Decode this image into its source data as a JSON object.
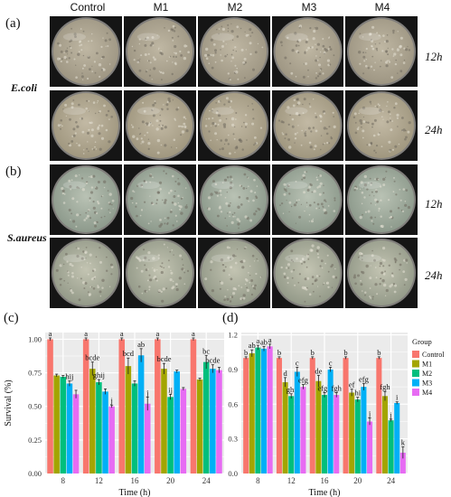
{
  "header": {
    "columns": [
      "Control",
      "M1",
      "M2",
      "M3",
      "M4"
    ]
  },
  "photos": {
    "panel_a": {
      "label": "(a)",
      "organism": "E.coli",
      "rows": [
        "12h",
        "24h"
      ]
    },
    "panel_b": {
      "label": "(b)",
      "organism": "S.aureus",
      "rows": [
        "12h",
        "24h"
      ]
    }
  },
  "chart_data": [
    {
      "type": "bar",
      "panel_label": "(c)",
      "xlabel": "Time (h)",
      "ylabel": "Survival (%)",
      "categories": [
        "8",
        "12",
        "16",
        "20",
        "24"
      ],
      "yticks": [
        "0.00",
        "0.25",
        "0.50",
        "0.75",
        "1.00"
      ],
      "ylim": [
        0,
        1.05
      ],
      "grid": true,
      "series": [
        {
          "name": "Control",
          "values": [
            1.0,
            1.0,
            1.0,
            1.0,
            1.0
          ],
          "errors": [
            0.01,
            0.01,
            0.01,
            0.01,
            0.01
          ],
          "letters": [
            "a",
            "a",
            "a",
            "a",
            "a"
          ]
        },
        {
          "name": "M1",
          "values": [
            0.73,
            0.78,
            0.8,
            0.78,
            0.7
          ],
          "errors": [
            0.01,
            0.05,
            0.06,
            0.04,
            0.01
          ],
          "letters": [
            "",
            "bcde",
            "bcd",
            "bcde",
            ""
          ]
        },
        {
          "name": "M2",
          "values": [
            0.72,
            0.68,
            0.67,
            0.57,
            0.83
          ],
          "errors": [
            0.01,
            0.02,
            0.02,
            0.02,
            0.05
          ],
          "letters": [
            "",
            "ghij",
            "",
            "ij",
            "bc"
          ]
        },
        {
          "name": "M3",
          "values": [
            0.67,
            0.61,
            0.88,
            0.76,
            0.78
          ],
          "errors": [
            0.02,
            0.02,
            0.05,
            0.01,
            0.03
          ],
          "letters": [
            "hij",
            "",
            "ab",
            "",
            "bcde"
          ]
        },
        {
          "name": "M4",
          "values": [
            0.59,
            0.5,
            0.52,
            0.63,
            0.77
          ],
          "errors": [
            0.03,
            0.01,
            0.05,
            0.01,
            0.02
          ],
          "letters": [
            "",
            "j",
            "j",
            "",
            ""
          ]
        }
      ]
    },
    {
      "type": "bar",
      "panel_label": "(d)",
      "xlabel": "Time (h)",
      "ylabel": "",
      "categories": [
        "8",
        "12",
        "16",
        "20",
        "24"
      ],
      "yticks": [
        "0.0",
        "0.3",
        "0.6",
        "0.9",
        "1.2"
      ],
      "ylim": [
        0,
        1.22
      ],
      "grid": true,
      "legend_title": "Group",
      "legend_position": "right",
      "series": [
        {
          "name": "Control",
          "values": [
            1.0,
            1.0,
            1.0,
            1.0,
            1.0
          ],
          "errors": [
            0.01,
            0.01,
            0.01,
            0.01,
            0.01
          ],
          "letters": [
            "b",
            "b",
            "b",
            "b",
            "b"
          ]
        },
        {
          "name": "M1",
          "values": [
            1.04,
            0.79,
            0.8,
            0.7,
            0.67
          ],
          "errors": [
            0.03,
            0.04,
            0.05,
            0.03,
            0.04
          ],
          "letters": [
            "ab",
            "d",
            "de",
            "ef",
            "fgh"
          ]
        },
        {
          "name": "M2",
          "values": [
            1.09,
            0.67,
            0.68,
            0.64,
            0.46
          ],
          "errors": [
            0.02,
            0.02,
            0.02,
            0.02,
            0.01
          ],
          "letters": [
            "a",
            "ghi",
            "efgh",
            "hi",
            "j"
          ]
        },
        {
          "name": "M3",
          "values": [
            1.08,
            0.88,
            0.9,
            0.75,
            0.61
          ],
          "errors": [
            0.02,
            0.04,
            0.02,
            0.03,
            0.01
          ],
          "letters": [
            "ab",
            "c",
            "c",
            "efg",
            "i"
          ]
        },
        {
          "name": "M4",
          "values": [
            1.1,
            0.75,
            0.68,
            0.45,
            0.18
          ],
          "errors": [
            0.02,
            0.02,
            0.02,
            0.03,
            0.05
          ],
          "letters": [
            "a",
            "efg",
            "fgh",
            "j",
            "k"
          ]
        }
      ]
    }
  ],
  "colors": {
    "Control": "#f8766d",
    "M1": "#a3a500",
    "M2": "#00bf7d",
    "M3": "#00b0f6",
    "M4": "#e76bf3"
  }
}
